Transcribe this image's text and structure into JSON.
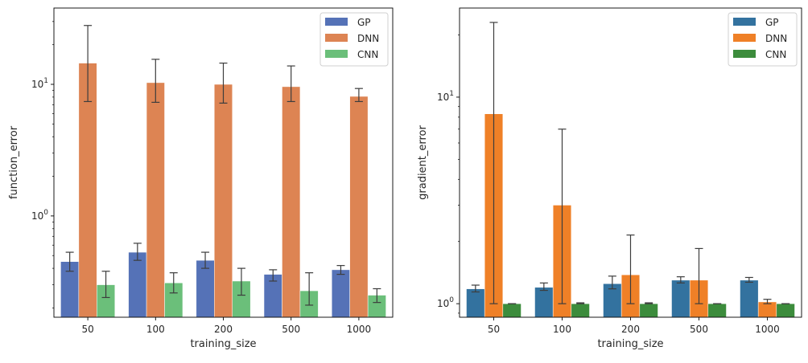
{
  "chart_data": [
    {
      "type": "bar",
      "scale": "log",
      "categories": [
        "50",
        "100",
        "200",
        "500",
        "1000"
      ],
      "xlabel": "training_size",
      "ylabel": "function_error",
      "ylim": [
        0.17,
        38
      ],
      "yticks": [
        {
          "value": 1,
          "base": "10",
          "exp": "0"
        },
        {
          "value": 10,
          "base": "10",
          "exp": "1"
        }
      ],
      "legend_position": "top-right",
      "series": [
        {
          "name": "GP",
          "color": "#5572b7",
          "values": [
            0.45,
            0.53,
            0.46,
            0.36,
            0.39
          ],
          "err_low": [
            0.38,
            0.46,
            0.4,
            0.32,
            0.36
          ],
          "err_high": [
            0.53,
            0.62,
            0.53,
            0.39,
            0.42
          ]
        },
        {
          "name": "DNN",
          "color": "#dd8453",
          "values": [
            14.5,
            10.3,
            10.0,
            9.6,
            8.1
          ],
          "err_low": [
            7.4,
            7.3,
            7.2,
            7.4,
            7.4
          ],
          "err_high": [
            28.0,
            15.5,
            14.5,
            13.8,
            9.3
          ]
        },
        {
          "name": "CNN",
          "color": "#6bbf7a",
          "values": [
            0.3,
            0.31,
            0.32,
            0.27,
            0.25
          ],
          "err_low": [
            0.24,
            0.26,
            0.25,
            0.21,
            0.22
          ],
          "err_high": [
            0.38,
            0.37,
            0.4,
            0.37,
            0.28
          ]
        }
      ]
    },
    {
      "type": "bar",
      "scale": "log",
      "categories": [
        "50",
        "100",
        "200",
        "500",
        "1000"
      ],
      "xlabel": "training_size",
      "ylabel": "gradient_error",
      "ylim": [
        0.86,
        27
      ],
      "yticks": [
        {
          "value": 1,
          "base": "10",
          "exp": "0"
        },
        {
          "value": 10,
          "base": "10",
          "exp": "1"
        }
      ],
      "legend_position": "top-right",
      "series": [
        {
          "name": "GP",
          "color": "#33729f",
          "values": [
            1.18,
            1.2,
            1.25,
            1.3,
            1.3
          ],
          "err_low": [
            1.14,
            1.16,
            1.18,
            1.26,
            1.27
          ],
          "err_high": [
            1.23,
            1.26,
            1.36,
            1.35,
            1.34
          ]
        },
        {
          "name": "DNN",
          "color": "#ef8027",
          "values": [
            8.3,
            3.0,
            1.38,
            1.3,
            1.02
          ],
          "err_low": [
            1.0,
            1.0,
            1.0,
            1.0,
            1.0
          ],
          "err_high": [
            23.0,
            7.0,
            2.15,
            1.85,
            1.05
          ]
        },
        {
          "name": "CNN",
          "color": "#3c8c3c",
          "values": [
            1.0,
            1.0,
            1.0,
            1.0,
            1.0
          ],
          "err_low": [
            1.0,
            1.0,
            1.0,
            1.0,
            1.0
          ],
          "err_high": [
            1.0,
            1.01,
            1.01,
            1.0,
            1.0
          ]
        }
      ]
    }
  ]
}
